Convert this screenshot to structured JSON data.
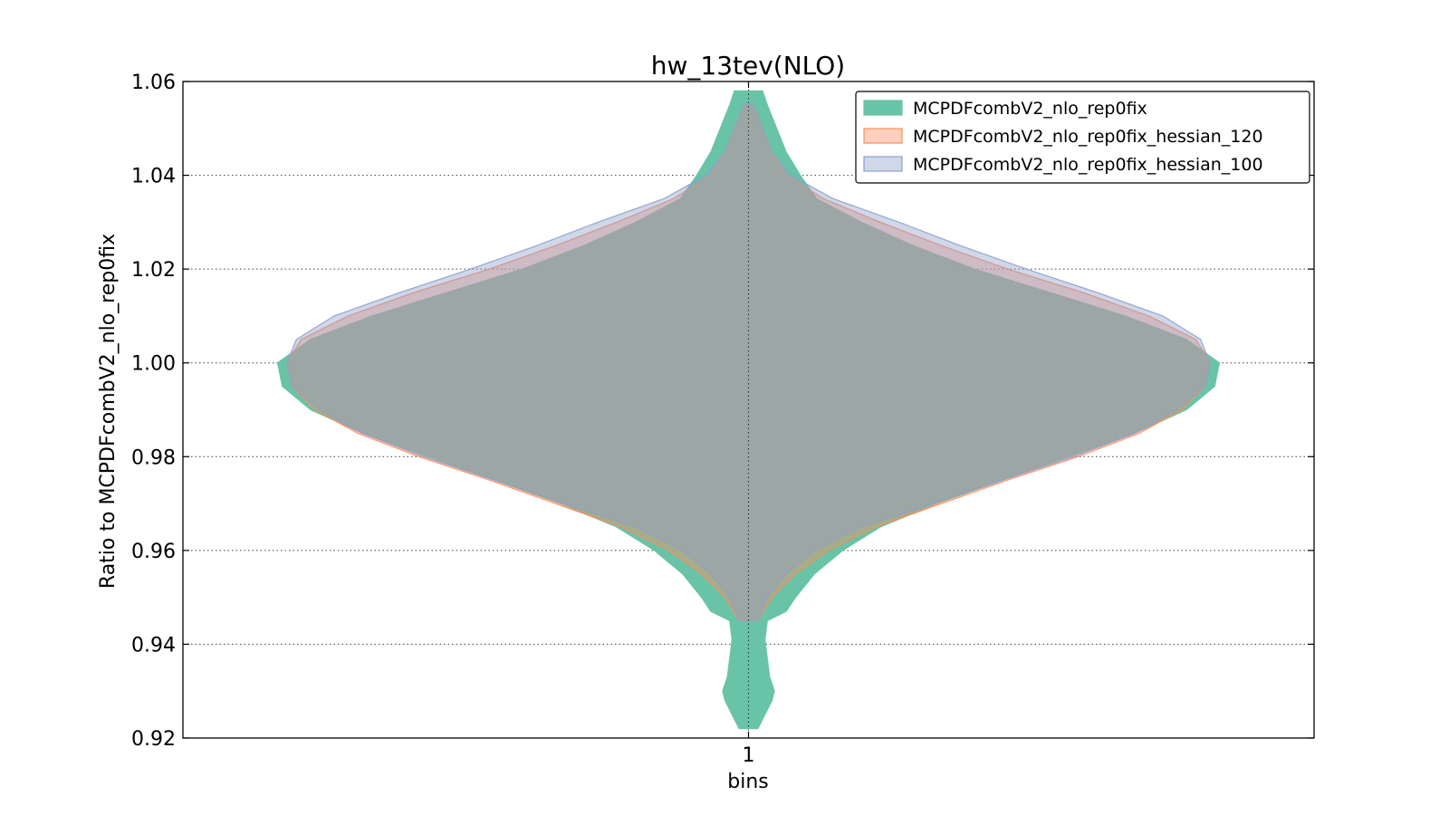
{
  "chart_data": {
    "type": "violin",
    "title": "hw_13tev(NLO)",
    "xlabel": "bins",
    "ylabel": "Ratio to MCPDFcombV2_nlo_rep0fix",
    "categories": [
      "1"
    ],
    "ylim": [
      0.92,
      1.06
    ],
    "yticks": [
      "0.92",
      "0.94",
      "0.96",
      "0.98",
      "1.00",
      "1.02",
      "1.04",
      "1.06"
    ],
    "grid": true,
    "legend_position": "top-right",
    "series": [
      {
        "name": "MCPDFcombV2_nlo_rep0fix",
        "color": "#66c2a5",
        "y_range": [
          0.922,
          1.058
        ],
        "profile": [
          [
            0.922,
            0.02
          ],
          [
            0.925,
            0.035
          ],
          [
            0.928,
            0.05
          ],
          [
            0.93,
            0.055
          ],
          [
            0.933,
            0.045
          ],
          [
            0.937,
            0.04
          ],
          [
            0.941,
            0.035
          ],
          [
            0.945,
            0.04
          ],
          [
            0.947,
            0.08
          ],
          [
            0.95,
            0.1
          ],
          [
            0.955,
            0.14
          ],
          [
            0.96,
            0.2
          ],
          [
            0.965,
            0.28
          ],
          [
            0.97,
            0.4
          ],
          [
            0.975,
            0.54
          ],
          [
            0.98,
            0.68
          ],
          [
            0.985,
            0.82
          ],
          [
            0.99,
            0.93
          ],
          [
            0.995,
            0.99
          ],
          [
            1.0,
            1.0
          ],
          [
            1.005,
            0.93
          ],
          [
            1.01,
            0.8
          ],
          [
            1.015,
            0.64
          ],
          [
            1.02,
            0.48
          ],
          [
            1.025,
            0.35
          ],
          [
            1.03,
            0.24
          ],
          [
            1.035,
            0.145
          ],
          [
            1.04,
            0.11
          ],
          [
            1.045,
            0.08
          ],
          [
            1.05,
            0.06
          ],
          [
            1.055,
            0.04
          ],
          [
            1.058,
            0.03
          ]
        ]
      },
      {
        "name": "MCPDFcombV2_nlo_rep0fix_hessian_120",
        "color": "#fc8d62",
        "y_range": [
          0.945,
          1.055
        ],
        "profile": [
          [
            0.945,
            0.02
          ],
          [
            0.95,
            0.05
          ],
          [
            0.955,
            0.1
          ],
          [
            0.96,
            0.17
          ],
          [
            0.965,
            0.27
          ],
          [
            0.97,
            0.41
          ],
          [
            0.975,
            0.55
          ],
          [
            0.98,
            0.7
          ],
          [
            0.985,
            0.83
          ],
          [
            0.99,
            0.92
          ],
          [
            0.995,
            0.97
          ],
          [
            1.0,
            0.98
          ],
          [
            1.005,
            0.95
          ],
          [
            1.01,
            0.85
          ],
          [
            1.015,
            0.71
          ],
          [
            1.02,
            0.55
          ],
          [
            1.025,
            0.41
          ],
          [
            1.03,
            0.28
          ],
          [
            1.035,
            0.16
          ],
          [
            1.04,
            0.08
          ],
          [
            1.045,
            0.05
          ],
          [
            1.05,
            0.03
          ],
          [
            1.055,
            0.01
          ]
        ]
      },
      {
        "name": "MCPDFcombV2_nlo_rep0fix_hessian_100",
        "color": "#8da0cb",
        "y_range": [
          0.945,
          1.055
        ],
        "profile": [
          [
            0.945,
            0.02
          ],
          [
            0.95,
            0.04
          ],
          [
            0.955,
            0.08
          ],
          [
            0.96,
            0.14
          ],
          [
            0.965,
            0.24
          ],
          [
            0.97,
            0.39
          ],
          [
            0.975,
            0.54
          ],
          [
            0.98,
            0.69
          ],
          [
            0.985,
            0.82
          ],
          [
            0.99,
            0.91
          ],
          [
            0.995,
            0.97
          ],
          [
            1.0,
            0.98
          ],
          [
            1.005,
            0.96
          ],
          [
            1.01,
            0.88
          ],
          [
            1.015,
            0.74
          ],
          [
            1.02,
            0.59
          ],
          [
            1.025,
            0.45
          ],
          [
            1.03,
            0.32
          ],
          [
            1.035,
            0.18
          ],
          [
            1.04,
            0.09
          ],
          [
            1.045,
            0.05
          ],
          [
            1.05,
            0.03
          ],
          [
            1.055,
            0.01
          ]
        ]
      }
    ]
  }
}
